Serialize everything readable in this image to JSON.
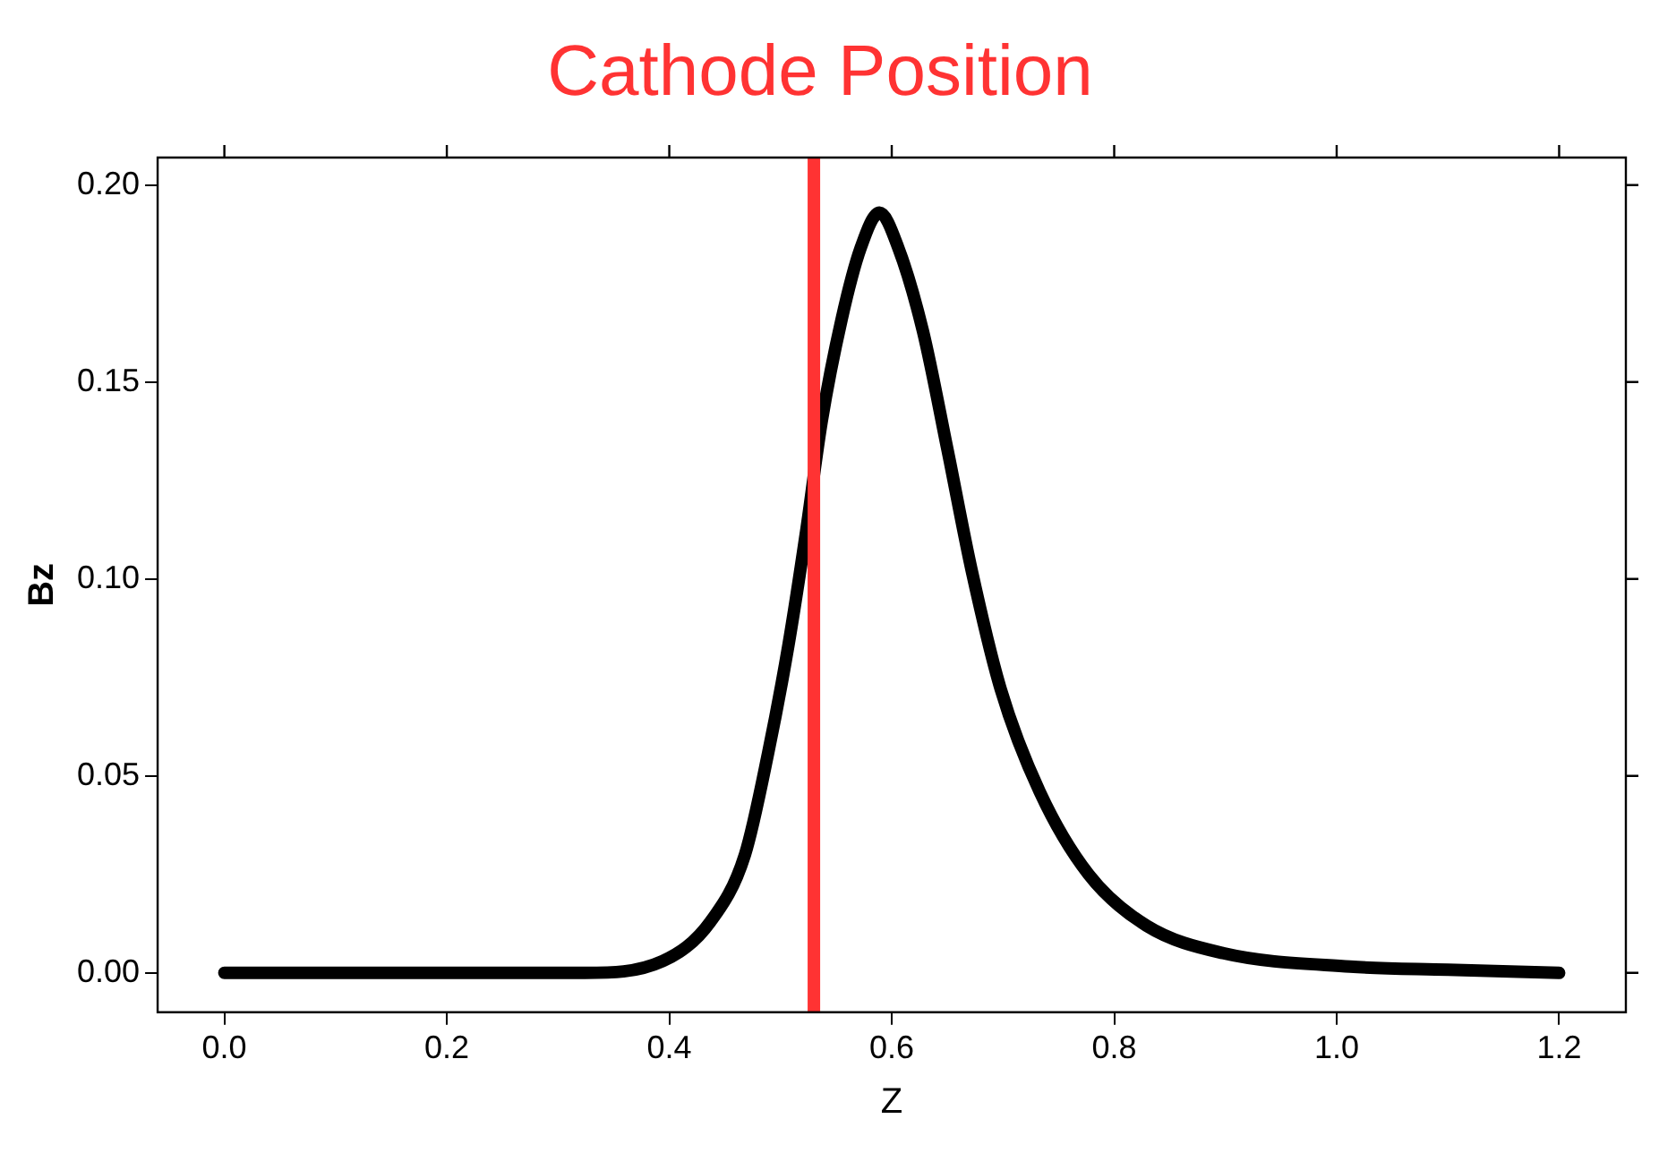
{
  "chart_data": {
    "type": "line",
    "title": "Cathode Position",
    "xlabel": "Z",
    "ylabel": "Bz",
    "x": [
      0,
      0.1,
      0.2,
      0.324,
      0.394,
      0.437,
      0.468,
      0.489,
      0.507,
      0.523,
      0.537,
      0.555,
      0.572,
      0.589,
      0.606,
      0.628,
      0.65,
      0.672,
      0.698,
      0.733,
      0.777,
      0.829,
      0.898,
      1.012,
      1.1,
      1.2
    ],
    "series": [
      {
        "color": "#000000",
        "values": [
          0,
          0,
          0,
          0,
          0.003,
          0.013,
          0.03,
          0.056,
          0.083,
          0.112,
          0.14,
          0.166,
          0.184,
          0.193,
          0.184,
          0.163,
          0.133,
          0.102,
          0.072,
          0.046,
          0.025,
          0.012,
          0.005,
          0.0016,
          0.0008,
          0
        ]
      }
    ],
    "xlim": [
      -0.06,
      1.26
    ],
    "xticks": [
      {
        "value": 0,
        "label": "0.0"
      },
      0.2,
      0.4,
      0.6,
      0.8,
      {
        "value": 1,
        "label": "1.0"
      },
      1.2
    ],
    "ylim": [
      -0.01,
      0.207
    ],
    "yticks": [
      {
        "value": 0,
        "label": "0.00"
      },
      0.05,
      {
        "value": 0.1,
        "label": "0.10"
      },
      0.15,
      {
        "value": 0.2,
        "label": "0.20"
      }
    ],
    "ref_lines": [
      {
        "axis": "x",
        "value": 0.53,
        "color": "#ff3333"
      }
    ],
    "grid": false,
    "legend": false,
    "marker": "none",
    "line_style": "solid"
  }
}
